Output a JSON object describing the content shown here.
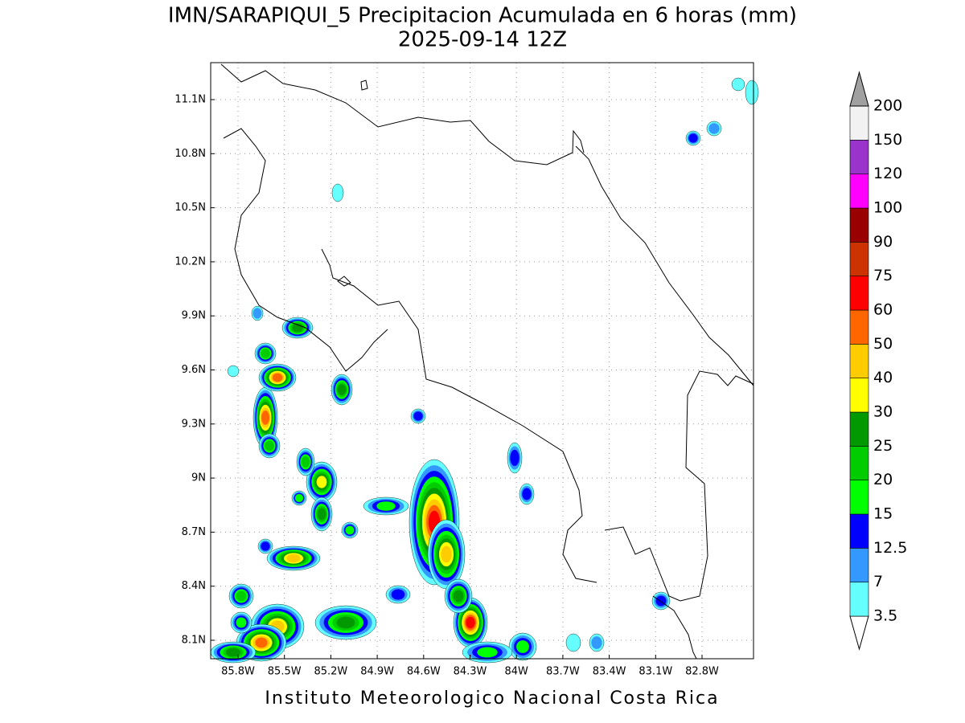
{
  "title": "IMN/SARAPIQUI_5 Precipitacion Acumulada en 6 horas (mm)",
  "subtitle": "2025-09-14 12Z",
  "lon_ticks": [
    "85.8W",
    "85.5W",
    "85.2W",
    "84.9W",
    "84.6W",
    "84.3W",
    "84W",
    "83.7W",
    "83.4W",
    "83.1W",
    "82.8W"
  ],
  "lat_ticks": [
    "11.1N",
    "10.8N",
    "10.5N",
    "10.2N",
    "9.9N",
    "9.6N",
    "9.3N",
    "9N",
    "8.7N",
    "8.4N",
    "8.1N"
  ],
  "colorbar": {
    "levels": [
      3.5,
      7,
      12.5,
      15,
      20,
      25,
      30,
      40,
      50,
      60,
      75,
      90,
      100,
      120,
      150,
      200
    ],
    "colors": [
      "#ffffff",
      "#66ffff",
      "#3399ff",
      "#0000ff",
      "#00ff00",
      "#00cc00",
      "#009900",
      "#ffff00",
      "#ffcc00",
      "#ff6600",
      "#ff0000",
      "#cc3300",
      "#990000",
      "#ff00ff",
      "#9933cc",
      "#f2f2f2",
      "#a0a0a0"
    ]
  },
  "footer": "Instituto Meteorologico Nacional Costa Rica"
}
